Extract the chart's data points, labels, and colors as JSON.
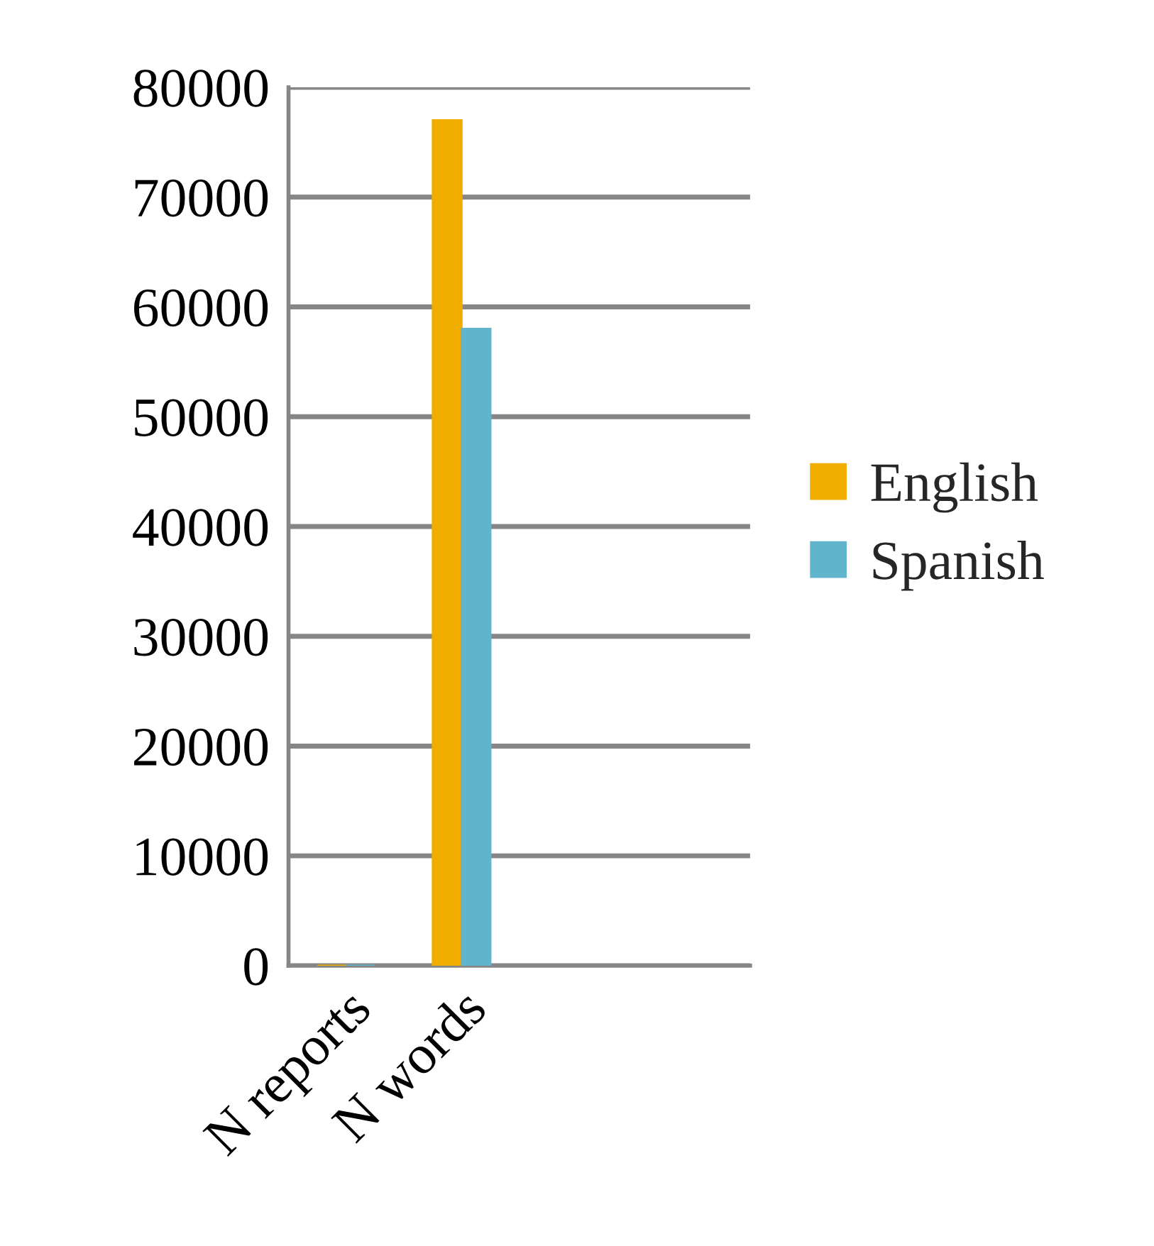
{
  "chart_data": {
    "type": "bar",
    "categories": [
      "N reports",
      "N words",
      null,
      null
    ],
    "series": [
      {
        "name": "English",
        "color": "#f0ad00",
        "values": [
          0,
          77000,
          null,
          null
        ]
      },
      {
        "name": "Spanish",
        "color": "#60b5cc",
        "values": [
          0,
          58000,
          null,
          null
        ]
      }
    ],
    "ylim": [
      0,
      80000
    ],
    "yticks": [
      0,
      10000,
      20000,
      30000,
      40000,
      50000,
      60000,
      70000,
      80000
    ],
    "grid": "y",
    "legend": "right"
  }
}
